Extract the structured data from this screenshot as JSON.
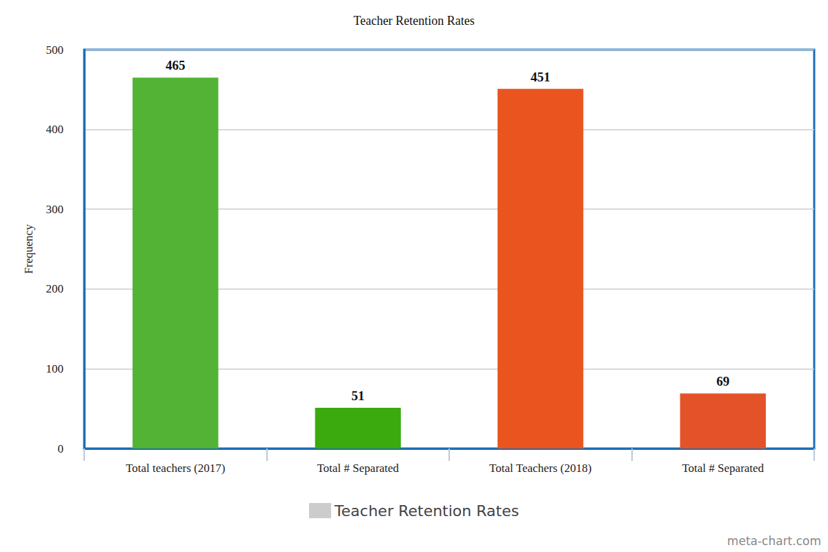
{
  "chart_data": {
    "type": "bar",
    "title": "Teacher Retention Rates",
    "y_label": "Frequency",
    "categories": [
      "Total teachers (2017)",
      "Total # Separated",
      "Total Teachers (2018)",
      "Total # Separated"
    ],
    "series": [
      {
        "name": "Teacher Retention Rates",
        "color": "#cccccc",
        "values": [
          465,
          51,
          451,
          69
        ]
      }
    ],
    "colors": [
      "#52b335",
      "#3aaa0e",
      "#ea551f",
      "#e4522a"
    ],
    "ylim": [
      0,
      500
    ],
    "yticks": [
      0,
      100,
      200,
      300,
      400,
      500
    ],
    "grid": true,
    "data_labels": true,
    "legend": "bottom",
    "annotation": "meta-chart.com"
  }
}
